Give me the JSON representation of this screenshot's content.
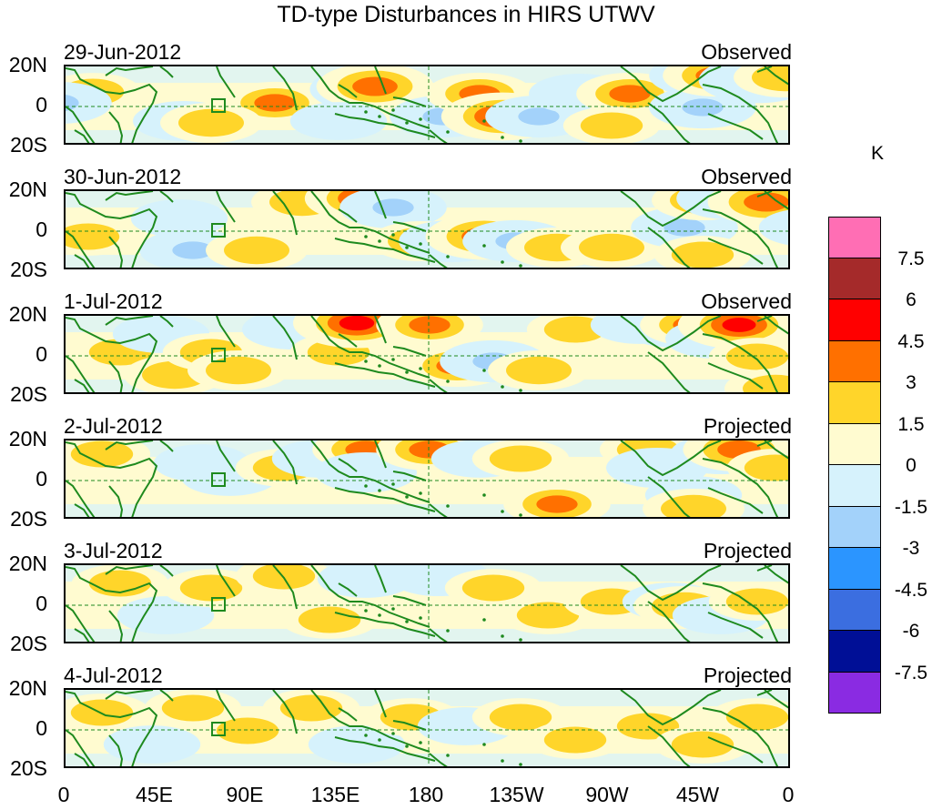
{
  "title": "TD-type Disturbances in HIRS UTWV",
  "unit": "K",
  "y_labels": [
    "20N",
    "0",
    "20S"
  ],
  "x_labels": [
    "0",
    "45E",
    "90E",
    "135E",
    "180",
    "135W",
    "90W",
    "45W",
    "0"
  ],
  "panels": [
    {
      "date": "29-Jun-2012",
      "status": "Observed"
    },
    {
      "date": "30-Jun-2012",
      "status": "Observed"
    },
    {
      "date": "1-Jul-2012",
      "status": "Observed"
    },
    {
      "date": "2-Jul-2012",
      "status": "Projected"
    },
    {
      "date": "3-Jul-2012",
      "status": "Projected"
    },
    {
      "date": "4-Jul-2012",
      "status": "Projected"
    }
  ],
  "colorbar": {
    "colors": [
      "#ff6eb4",
      "#a52a2a",
      "#ff0000",
      "#ff7000",
      "#ffd52a",
      "#fffbd0",
      "#d6f2fc",
      "#a3d2fa",
      "#2b95ff",
      "#3b6ee0",
      "#000f96",
      "#8a2be2"
    ],
    "labels": [
      "7.5",
      "6",
      "4.5",
      "3",
      "1.5",
      "0",
      "-1.5",
      "-3",
      "-4.5",
      "-6",
      "-7.5"
    ]
  },
  "map_colors": {
    "land": "#1e8a1e",
    "grid": "#1e8a1e"
  },
  "anomalies": [
    [
      [
        30,
        28,
        2
      ],
      [
        -8,
        40,
        -3
      ],
      [
        230,
        40,
        3
      ],
      [
        330,
        25,
        -3.5
      ],
      [
        340,
        22,
        4
      ],
      [
        415,
        55,
        -3
      ],
      [
        455,
        30,
        3
      ],
      [
        480,
        55,
        4.5
      ],
      [
        520,
        55,
        -3
      ],
      [
        565,
        30,
        -2.5
      ],
      [
        620,
        30,
        3
      ],
      [
        700,
        10,
        -3
      ],
      [
        700,
        45,
        -3
      ],
      [
        715,
        10,
        3
      ],
      [
        760,
        15,
        -4
      ],
      [
        790,
        12,
        2.5
      ],
      [
        130,
        60,
        -2.5
      ],
      [
        160,
        62,
        2.5
      ],
      [
        300,
        60,
        -2
      ],
      [
        600,
        65,
        2
      ]
    ],
    [
      [
        25,
        50,
        2
      ],
      [
        125,
        30,
        -2
      ],
      [
        140,
        65,
        -3
      ],
      [
        210,
        65,
        2.5
      ],
      [
        260,
        12,
        2.5
      ],
      [
        330,
        8,
        4.5
      ],
      [
        360,
        18,
        -3
      ],
      [
        390,
        55,
        2.5
      ],
      [
        425,
        55,
        -3
      ],
      [
        460,
        50,
        4
      ],
      [
        495,
        55,
        -3
      ],
      [
        540,
        62,
        2.5
      ],
      [
        600,
        62,
        2.5
      ],
      [
        680,
        40,
        -3
      ],
      [
        700,
        10,
        2.5
      ],
      [
        730,
        8,
        -3
      ],
      [
        770,
        12,
        4
      ],
      [
        815,
        40,
        -2
      ],
      [
        700,
        70,
        2
      ]
    ],
    [
      [
        60,
        40,
        2
      ],
      [
        105,
        20,
        -2
      ],
      [
        120,
        65,
        2.5
      ],
      [
        160,
        40,
        2
      ],
      [
        190,
        60,
        2.5
      ],
      [
        250,
        15,
        -2.5
      ],
      [
        300,
        40,
        2
      ],
      [
        320,
        8,
        5
      ],
      [
        400,
        10,
        3
      ],
      [
        430,
        55,
        3
      ],
      [
        470,
        50,
        -3
      ],
      [
        520,
        60,
        2.5
      ],
      [
        560,
        15,
        2
      ],
      [
        630,
        10,
        -2
      ],
      [
        670,
        12,
        -3
      ],
      [
        690,
        10,
        3
      ],
      [
        715,
        25,
        -2.5
      ],
      [
        740,
        10,
        4.5
      ],
      [
        760,
        45,
        2
      ],
      [
        780,
        80,
        2.5
      ]
    ],
    [
      [
        40,
        15,
        2
      ],
      [
        150,
        25,
        -2
      ],
      [
        180,
        40,
        -2
      ],
      [
        240,
        30,
        2
      ],
      [
        280,
        20,
        -2
      ],
      [
        330,
        10,
        3
      ],
      [
        330,
        35,
        -2.5
      ],
      [
        400,
        10,
        3
      ],
      [
        455,
        20,
        -2
      ],
      [
        500,
        20,
        2
      ],
      [
        540,
        70,
        3
      ],
      [
        640,
        10,
        2
      ],
      [
        650,
        30,
        -2.5
      ],
      [
        690,
        60,
        -2
      ],
      [
        720,
        15,
        -2.5
      ],
      [
        740,
        10,
        3.5
      ],
      [
        690,
        75,
        2.5
      ],
      [
        780,
        30,
        2
      ]
    ],
    [
      [
        60,
        20,
        2
      ],
      [
        110,
        55,
        -2
      ],
      [
        160,
        25,
        2
      ],
      [
        240,
        12,
        2
      ],
      [
        290,
        60,
        2
      ],
      [
        330,
        15,
        -2
      ],
      [
        410,
        12,
        -2.5
      ],
      [
        470,
        25,
        2
      ],
      [
        530,
        55,
        2
      ],
      [
        600,
        40,
        2
      ],
      [
        665,
        40,
        -2
      ],
      [
        680,
        45,
        2.5
      ],
      [
        720,
        55,
        -2
      ],
      [
        760,
        40,
        2
      ]
    ],
    [
      [
        40,
        25,
        2
      ],
      [
        95,
        60,
        -2
      ],
      [
        140,
        20,
        2
      ],
      [
        200,
        45,
        2
      ],
      [
        270,
        20,
        2
      ],
      [
        320,
        60,
        -2
      ],
      [
        380,
        30,
        2
      ],
      [
        440,
        40,
        -2
      ],
      [
        500,
        30,
        2
      ],
      [
        560,
        55,
        2
      ],
      [
        640,
        40,
        2
      ],
      [
        700,
        60,
        2
      ],
      [
        760,
        30,
        2
      ]
    ]
  ]
}
